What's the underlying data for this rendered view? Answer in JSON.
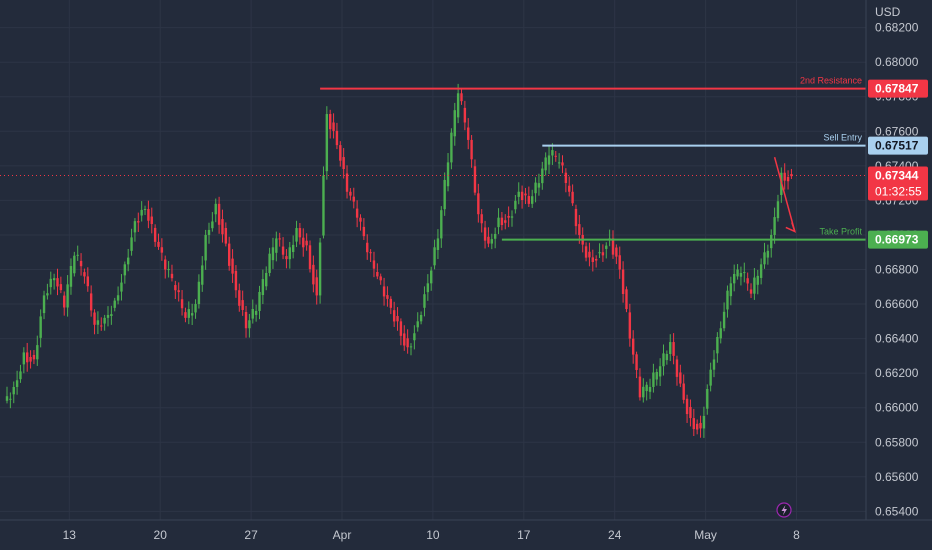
{
  "chart_data": {
    "type": "candlestick",
    "currency_label": "USD",
    "ylim": [
      0.6535,
      0.6836
    ],
    "y_ticks": [
      "0.68200",
      "0.68000",
      "0.67800",
      "0.67600",
      "0.67400",
      "0.67200",
      "0.67000",
      "0.66800",
      "0.66600",
      "0.66400",
      "0.66200",
      "0.66000",
      "0.65800",
      "0.65600",
      "0.65400"
    ],
    "x_ticks": [
      {
        "label": "13",
        "index": 3
      },
      {
        "label": "20",
        "index": 12
      },
      {
        "label": "27",
        "index": 21
      },
      {
        "label": "Apr",
        "index": 30
      },
      {
        "label": "10",
        "index": 39
      },
      {
        "label": "17",
        "index": 48
      },
      {
        "label": "24",
        "index": 57
      },
      {
        "label": "May",
        "index": 66
      },
      {
        "label": "8",
        "index": 75
      }
    ],
    "candle_count": 78,
    "closes": [
      0.6612,
      0.6632,
      0.6628,
      0.6665,
      0.6675,
      0.6658,
      0.6688,
      0.6676,
      0.6648,
      0.6652,
      0.6662,
      0.6683,
      0.6708,
      0.6715,
      0.6696,
      0.668,
      0.6668,
      0.6652,
      0.666,
      0.67,
      0.6718,
      0.6695,
      0.6668,
      0.6646,
      0.6656,
      0.6678,
      0.6698,
      0.6686,
      0.6704,
      0.6694,
      0.6665,
      0.677,
      0.6752,
      0.6725,
      0.671,
      0.669,
      0.6676,
      0.6663,
      0.665,
      0.6635,
      0.665,
      0.6672,
      0.6698,
      0.6742,
      0.6782,
      0.6755,
      0.6712,
      0.6695,
      0.671,
      0.671,
      0.6725,
      0.6718,
      0.673,
      0.6746,
      0.6742,
      0.6725,
      0.67,
      0.6687,
      0.669,
      0.6698,
      0.668,
      0.664,
      0.6606,
      0.6612,
      0.6624,
      0.6638,
      0.6614,
      0.6594,
      0.6588,
      0.6622,
      0.6646,
      0.6672,
      0.6678,
      0.6666,
      0.6683,
      0.67,
      0.6736,
      0.6734
    ],
    "levels": [
      {
        "label": "2nd Resistance",
        "value": 0.67847,
        "value_text": "0.67847",
        "color": "#f23645",
        "start_index": 31
      },
      {
        "label": "Sell Entry",
        "value": 0.67517,
        "value_text": "0.67517",
        "color": "#a9d0ef",
        "start_index": 53
      },
      {
        "label": "Take Profit",
        "value": 0.66973,
        "value_text": "0.66973",
        "color": "#4caf50",
        "start_index": 49
      }
    ],
    "current_price": {
      "value": 0.67344,
      "value_text": "0.67344",
      "countdown": "01:32:55",
      "color": "#f23645"
    },
    "projection_arrow": {
      "color": "#f23645",
      "from_index": 76,
      "from_value": 0.6745,
      "to_index": 78,
      "to_value": 0.6702
    },
    "colors": {
      "bull": "#4caf50",
      "bear": "#f23645",
      "background": "#232b3b",
      "grid": "#2d3546",
      "axis_text": "#c4c8d0"
    },
    "grid": true
  },
  "icons": {
    "flash_icon": "lightning-bolt"
  }
}
